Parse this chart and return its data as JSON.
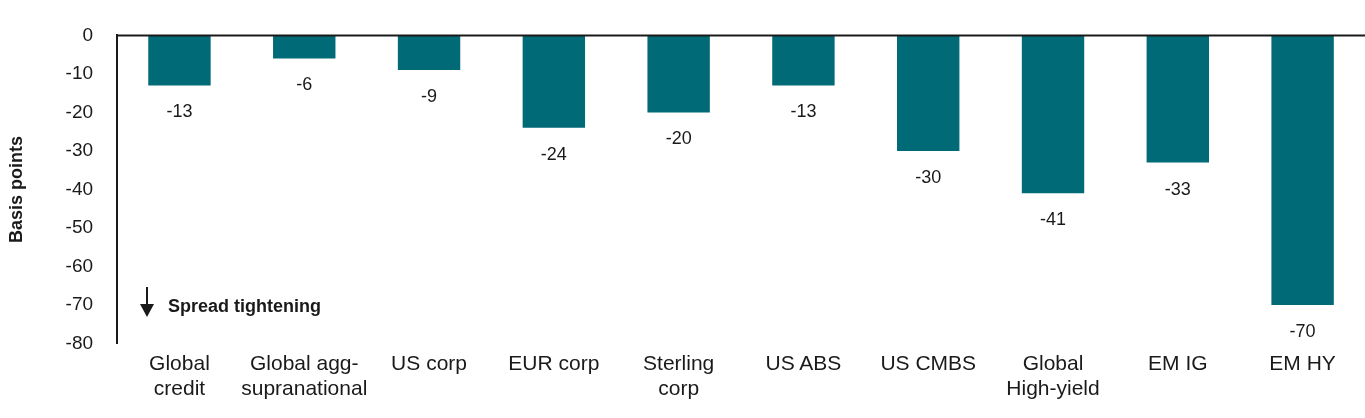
{
  "chart_data": {
    "type": "bar",
    "ylabel": "Basis points",
    "categories": [
      "Global credit",
      "Global agg-supranational",
      "US corp",
      "EUR corp",
      "Sterling corp",
      "US ABS",
      "US CMBS",
      "Global High-yield",
      "EM IG",
      "EM HY"
    ],
    "values": [
      -13,
      -6,
      -9,
      -24,
      -20,
      -13,
      -30,
      -41,
      -33,
      -70
    ],
    "color": "#016a77",
    "ylim": [
      -80,
      0
    ],
    "yticks": [
      0,
      -10,
      -20,
      -30,
      -40,
      -50,
      -60,
      -70,
      -80
    ],
    "data_labels": true,
    "annotations": [
      "Spread tightening"
    ]
  }
}
